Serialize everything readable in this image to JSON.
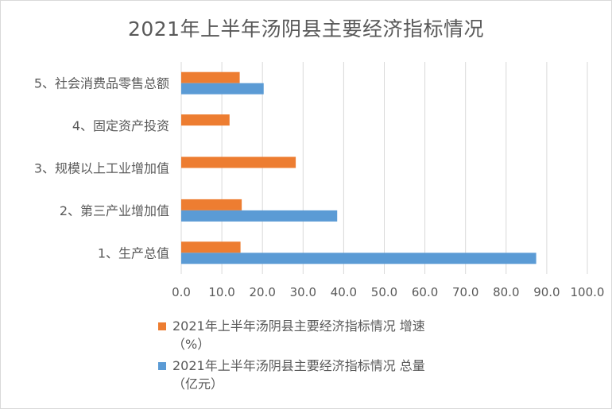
{
  "chart_data": {
    "type": "bar",
    "orientation": "horizontal",
    "title": "2021年上半年汤阴县主要经济指标情况",
    "categories": [
      "1、生产总值",
      "2、第三产业增加值",
      "3、规模以上工业增加值",
      "4、固定资产投资",
      "5、社会消费品零售总额"
    ],
    "series": [
      {
        "name": "2021年上半年汤阴县主要经济指标情况 增速（%）",
        "name_line1": "2021年上半年汤阴县主要经济指标情况 增速",
        "name_line2": "（%）",
        "color": "#ed7d31",
        "values": [
          14.6,
          14.9,
          28.2,
          11.9,
          14.4
        ]
      },
      {
        "name": "2021年上半年汤阴县主要经济指标情况 总量（亿元）",
        "name_line1": "2021年上半年汤阴县主要经济指标情况 总量",
        "name_line2": "（亿元）",
        "color": "#5b9bd5",
        "values": [
          87.4,
          38.4,
          null,
          null,
          20.3
        ]
      }
    ],
    "xlim": [
      0,
      100
    ],
    "x_ticks": [
      "0.0",
      "10.0",
      "20.0",
      "30.0",
      "40.0",
      "50.0",
      "60.0",
      "70.0",
      "80.0",
      "90.0",
      "100.0"
    ],
    "grid": true,
    "legend": "bottom-left"
  }
}
